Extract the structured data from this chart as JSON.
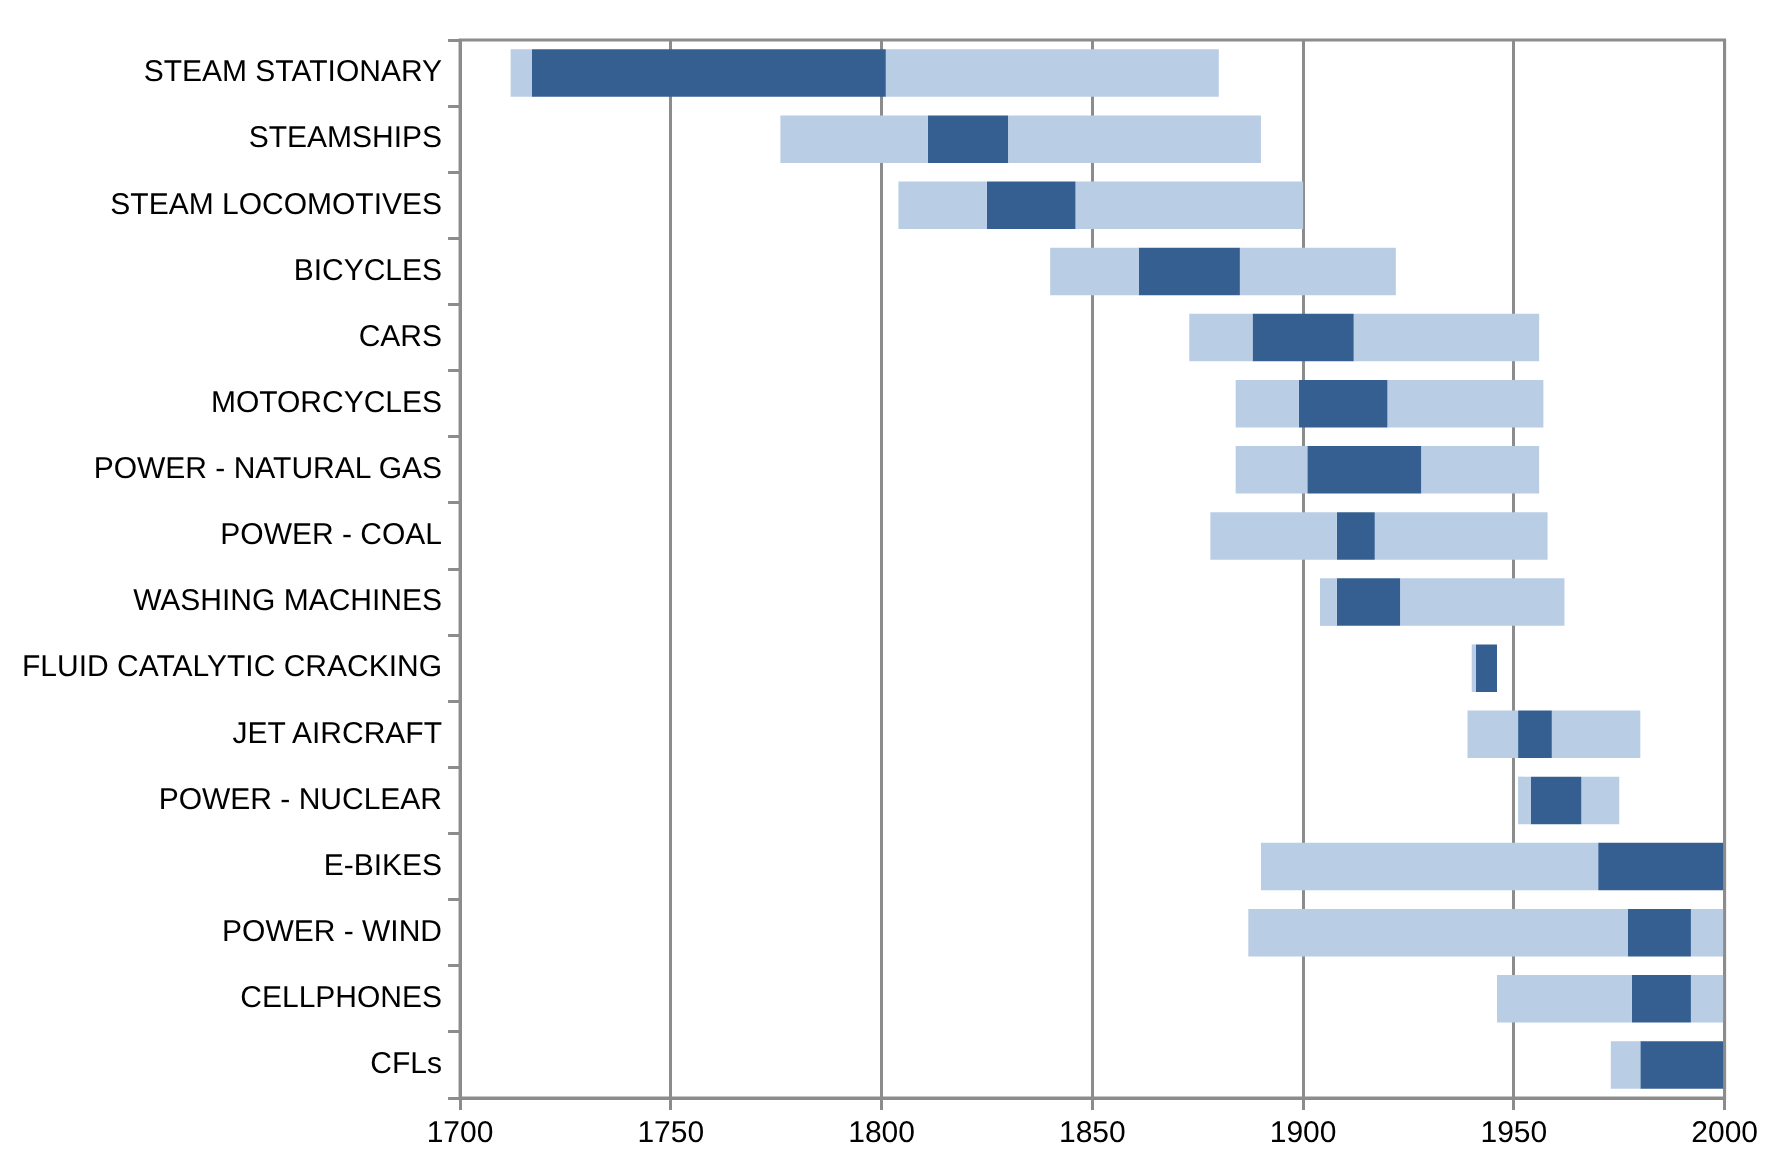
{
  "chart_data": {
    "type": "bar",
    "orientation": "horizontal",
    "categories": [
      "STEAM STATIONARY",
      "STEAMSHIPS",
      "STEAM LOCOMOTIVES",
      "BICYCLES",
      "CARS",
      "MOTORCYCLES",
      "POWER - NATURAL GAS",
      "POWER - COAL",
      "WASHING MACHINES",
      "FLUID CATALYTIC CRACKING",
      "JET AIRCRAFT",
      "POWER - NUCLEAR",
      "E-BIKES",
      "POWER - WIND",
      "CELLPHONES",
      "CFLs"
    ],
    "series": [
      {
        "color": "#b9cde5",
        "base": [
          1712,
          1776,
          1804,
          1840,
          1873,
          1884,
          1884,
          1878,
          1904,
          1940,
          1939,
          1951,
          1890,
          1887,
          1946,
          1973
        ],
        "values": [
          5,
          35,
          21,
          21,
          15,
          15,
          17,
          30,
          4,
          1,
          12,
          3,
          80,
          90,
          32,
          7
        ]
      },
      {
        "color": "#355f91",
        "base": [
          1717,
          1811,
          1825,
          1861,
          1888,
          1899,
          1901,
          1908,
          1908,
          1941,
          1951,
          1954,
          1970,
          1977,
          1978,
          1980
        ],
        "values": [
          84,
          19,
          21,
          24,
          24,
          21,
          27,
          9,
          15,
          5,
          8,
          12,
          30,
          15,
          14,
          20
        ]
      },
      {
        "color": "#b9cde5",
        "base": [
          1801,
          1830,
          1846,
          1885,
          1912,
          1920,
          1928,
          1917,
          1923,
          null,
          1959,
          1966,
          null,
          1992,
          1992,
          null
        ],
        "values": [
          79,
          60,
          54,
          37,
          44,
          37,
          28,
          41,
          39,
          null,
          21,
          9,
          null,
          8,
          8,
          null
        ]
      }
    ],
    "xlim": [
      1700,
      2000
    ],
    "xticks": [
      1700,
      1750,
      1800,
      1850,
      1900,
      1950,
      2000
    ],
    "grid": "x",
    "legend": false
  }
}
